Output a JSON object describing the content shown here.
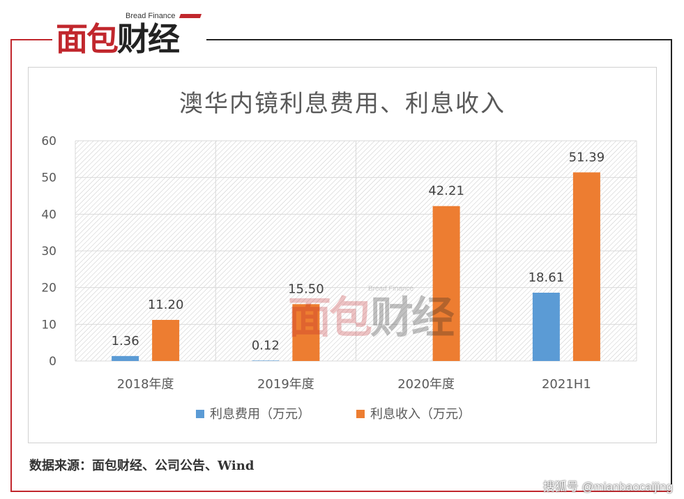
{
  "brand": {
    "english": "Bread Finance",
    "logo_part1": "面包",
    "logo_part2": "财经"
  },
  "source_note": "数据来源：面包财经、公司公告、Wind",
  "watermark": "搜狐号 @mianbaocaijing",
  "colors": {
    "brand_red": "#c1272d",
    "series_expense": "#5b9bd5",
    "series_income": "#ed7d31"
  },
  "chart_data": {
    "type": "bar",
    "title": "澳华内镜利息费用、利息收入",
    "categories": [
      "2018年度",
      "2019年度",
      "2020年度",
      "2021H1"
    ],
    "series": [
      {
        "name": "利息费用（万元）",
        "color": "#5b9bd5",
        "values": [
          1.36,
          0.12,
          null,
          18.61
        ],
        "labels": [
          "1.36",
          "0.12",
          "",
          "18.61"
        ]
      },
      {
        "name": "利息收入（万元）",
        "color": "#ed7d31",
        "values": [
          11.2,
          15.5,
          42.21,
          51.39
        ],
        "labels": [
          "11.20",
          "15.50",
          "42.21",
          "51.39"
        ]
      }
    ],
    "ylim": [
      0,
      60
    ],
    "yticks": [
      0,
      10,
      20,
      30,
      40,
      50,
      60
    ],
    "grid": true,
    "legend_position": "bottom"
  }
}
